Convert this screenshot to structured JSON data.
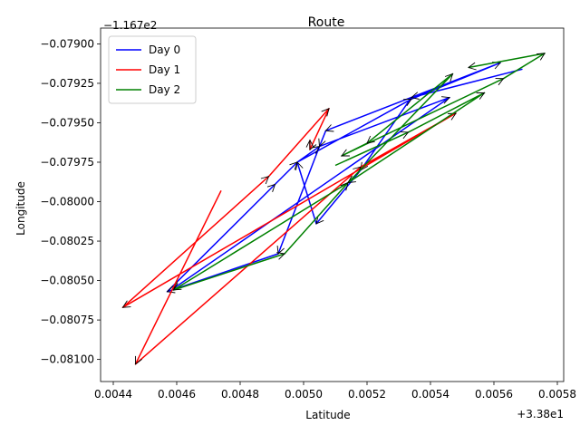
{
  "chart_data": {
    "type": "line",
    "title": "Route",
    "xlabel": "Latitude",
    "ylabel": "Longitude",
    "x_offset_label": "+3.38e1",
    "y_offset_label": "−1.167e2",
    "xlim": [
      0.00436,
      0.00582
    ],
    "ylim": [
      -0.08114,
      -0.0789
    ],
    "x_ticks": [
      0.0044,
      0.0046,
      0.0048,
      0.005,
      0.0052,
      0.0054,
      0.0056,
      0.0058
    ],
    "x_tick_labels": [
      "0.0044",
      "0.0046",
      "0.0048",
      "0.0050",
      "0.0052",
      "0.0054",
      "0.0056",
      "0.0058"
    ],
    "y_ticks": [
      -0.081,
      -0.08075,
      -0.0805,
      -0.08025,
      -0.08,
      -0.07975,
      -0.0795,
      -0.07925,
      -0.079
    ],
    "y_tick_labels": [
      "−0.08100",
      "−0.08075",
      "−0.08050",
      "−0.08025",
      "−0.08000",
      "−0.07975",
      "−0.07950",
      "−0.07925",
      "−0.07900"
    ],
    "legend_position": "top-left",
    "series": [
      {
        "name": "Day 0",
        "color": "#0000ff",
        "points": [
          [
            0.00569,
            -0.07916
          ],
          [
            0.00534,
            -0.07934
          ],
          [
            0.00518,
            -0.0798
          ],
          [
            0.00504,
            -0.08014
          ],
          [
            0.00498,
            -0.07975
          ],
          [
            0.00534,
            -0.07935
          ],
          [
            0.00562,
            -0.07912
          ],
          [
            0.00507,
            -0.07955
          ],
          [
            0.00505,
            -0.07965
          ],
          [
            0.00492,
            -0.08033
          ],
          [
            0.00457,
            -0.08057
          ],
          [
            0.00491,
            -0.07989
          ],
          [
            0.00498,
            -0.07975
          ],
          [
            0.00505,
            -0.07965
          ],
          [
            0.00546,
            -0.07934
          ],
          [
            0.00459,
            -0.08055
          ]
        ]
      },
      {
        "name": "Day 1",
        "color": "#ff0000",
        "points": [
          [
            0.00474,
            -0.07993
          ],
          [
            0.00447,
            -0.08103
          ],
          [
            0.00518,
            -0.07978
          ],
          [
            0.00548,
            -0.07944
          ],
          [
            0.00443,
            -0.08067
          ],
          [
            0.00489,
            -0.07984
          ],
          [
            0.00508,
            -0.07941
          ],
          [
            0.00502,
            -0.07967
          ],
          [
            0.00502,
            -0.07961
          ]
        ]
      },
      {
        "name": "Day 2",
        "color": "#008000",
        "points": [
          [
            0.0051,
            -0.07977
          ],
          [
            0.00533,
            -0.07956
          ],
          [
            0.00557,
            -0.07931
          ],
          [
            0.00514,
            -0.07988
          ],
          [
            0.00459,
            -0.08056
          ],
          [
            0.00494,
            -0.08033
          ],
          [
            0.00514,
            -0.07988
          ],
          [
            0.00547,
            -0.07919
          ],
          [
            0.0052,
            -0.07963
          ],
          [
            0.00512,
            -0.07971
          ],
          [
            0.00563,
            -0.07922
          ],
          [
            0.00576,
            -0.07906
          ],
          [
            0.00552,
            -0.07915
          ]
        ]
      }
    ]
  }
}
